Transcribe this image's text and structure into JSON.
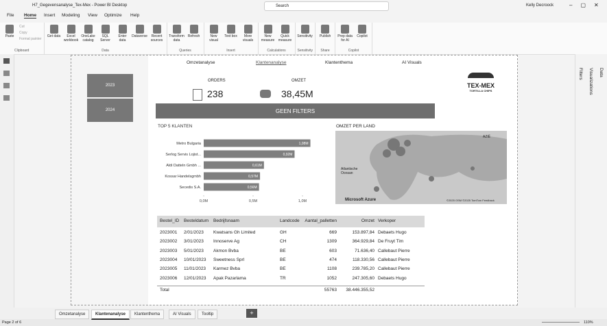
{
  "titlebar": {
    "title": "H7_Gegevensanalyse_Tex-Mex - Power BI Desktop",
    "search": "Search",
    "user": "Kelly Decroock"
  },
  "menu": [
    "File",
    "Home",
    "Insert",
    "Modeling",
    "View",
    "Optimize",
    "Help"
  ],
  "ribbon": [
    {
      "label": "Clipboard",
      "items": [
        "Paste"
      ],
      "small": [
        "Cut",
        "Copy",
        "Format painter"
      ]
    },
    {
      "label": "Data",
      "items": [
        "Get data",
        "Excel workbook",
        "OneLake catalog",
        "SQL Server",
        "Enter data",
        "Dataverse",
        "Recent sources"
      ]
    },
    {
      "label": "Queries",
      "items": [
        "Transform data",
        "Refresh"
      ]
    },
    {
      "label": "Insert",
      "items": [
        "New visual",
        "Text box",
        "More visuals"
      ]
    },
    {
      "label": "Calculations",
      "items": [
        "New measure",
        "Quick measure"
      ]
    },
    {
      "label": "Sensitivity",
      "items": [
        "Sensitivity"
      ]
    },
    {
      "label": "Share",
      "items": [
        "Publish"
      ]
    },
    {
      "label": "Copilot",
      "items": [
        "Prep data for AI",
        "Copilot"
      ]
    }
  ],
  "slicer": [
    "2023",
    "2024"
  ],
  "nav": [
    "Omzetanalyse",
    "Klantenanalyse",
    "Klantenthema",
    "AI Visuals"
  ],
  "cards": [
    {
      "label": "ORDERS",
      "value": "238"
    },
    {
      "label": "OMZET",
      "value": "38,45M"
    }
  ],
  "button": "GEEN FILTERS",
  "logo": {
    "title": "TEX-MEX",
    "subtitle": "TORTILLA CHIPS"
  },
  "chart_data": {
    "type": "bar",
    "orientation": "horizontal",
    "title": "TOP 5 KLANTEN",
    "categories": [
      "Metro Bulgaria",
      "Serlog Servis Lojist...",
      "Aldi Datteln Gmbh ...",
      "Kossar Handelsgmbh",
      "Secedis S.A."
    ],
    "values": [
      1.08,
      0.92,
      0.61,
      0.57,
      0.56
    ],
    "value_labels": [
      "1,08M",
      "0,92M",
      "0,61M",
      "0,57M",
      "0,56M"
    ],
    "color": "#7f7f7f",
    "xlim": [
      0,
      1.1
    ],
    "xticks": [
      {
        "value": 0,
        "label": "0,0M"
      },
      {
        "value": 0.5,
        "label": "0,5M"
      },
      {
        "value": 1,
        "label": "1,0M"
      }
    ]
  },
  "map": {
    "title": "OMZET PER LAND",
    "labels": [
      "AZIË",
      "Atlantische Oceaan"
    ],
    "brand": "Microsoft Azure",
    "credits": "©2025 OSM ©2025 TomTom Feedback"
  },
  "table": {
    "header": [
      "Bestel_ID",
      "Besteldatum",
      "Bedrijfsnaam",
      "Landcode",
      "Aantal_palletten",
      "Omzet",
      "Verkoper"
    ],
    "rows": [
      [
        "2023001",
        "2/01/2023",
        "Kwatsans Gh Limited",
        "GH",
        "669",
        "153.897,84",
        "Debaets Hugo"
      ],
      [
        "2023002",
        "3/01/2023",
        "Innoserve Ag",
        "CH",
        "1309",
        "364.929,84",
        "De Fruyt Tim"
      ],
      [
        "2023003",
        "5/01/2023",
        "Akmon Bvba",
        "BE",
        "603",
        "71.636,40",
        "Callebaut Pierre"
      ],
      [
        "2023004",
        "10/01/2023",
        "Sweetness Sprl",
        "BE",
        "474",
        "118.330,56",
        "Callebaut Pierre"
      ],
      [
        "2023005",
        "11/01/2023",
        "Karmez Bvba",
        "BE",
        "1108",
        "239.785,20",
        "Callebaut Pierre"
      ],
      [
        "2023006",
        "12/01/2023",
        "Apak Pazarlama",
        "TR",
        "1052",
        "247.305,60",
        "Debaets Hugo"
      ]
    ],
    "total": {
      "label": "Total",
      "palletten": "55763",
      "omzet": "38.446.355,52"
    }
  },
  "panes": [
    "Filters",
    "Visualizations",
    "Data"
  ],
  "page_tabs": [
    "Omzetanalyse",
    "Klantenanalyse",
    "Klantenthema",
    "AI Visuals",
    "Tooltip"
  ],
  "status": {
    "page": "Page 2 of 6",
    "zoom": "110%"
  }
}
